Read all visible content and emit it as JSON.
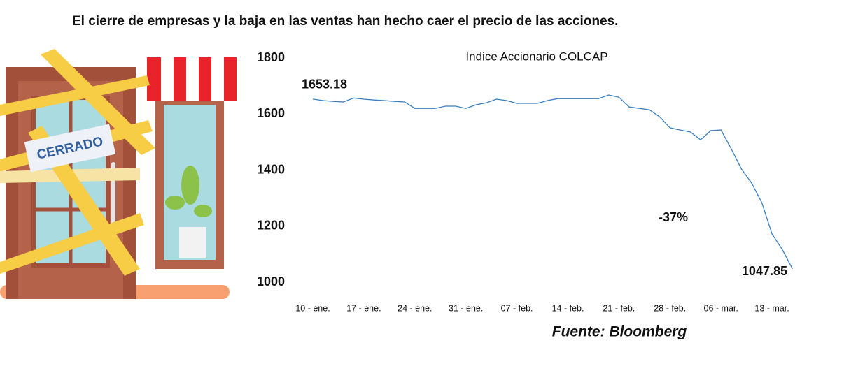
{
  "headline": "El cierre de empresas y la baja en las  ventas han hecho caer el precio de las acciones.",
  "illustration": {
    "sign": "CERRADO"
  },
  "source": "Fuente: Bloomberg",
  "chart_data": {
    "type": "line",
    "title": "Indice Accionario COLCAP",
    "color": "#3a7fc0",
    "categories": [
      "10 - ene.",
      null,
      null,
      null,
      null,
      "17 - ene.",
      null,
      null,
      null,
      null,
      "24 - ene.",
      null,
      null,
      null,
      null,
      "31 - ene.",
      null,
      null,
      null,
      null,
      "07 - feb.",
      null,
      null,
      null,
      null,
      "14 - feb.",
      null,
      null,
      null,
      null,
      "21 - feb.",
      null,
      null,
      null,
      null,
      "28 - feb.",
      null,
      null,
      null,
      null,
      "06 - mar.",
      null,
      null,
      null,
      null,
      "13 - mar.",
      null,
      null
    ],
    "values": [
      1653.18,
      1648,
      1645,
      1643,
      1657,
      1653,
      1650,
      1648,
      1645,
      1643,
      1620,
      1620,
      1620,
      1628,
      1628,
      1620,
      1633,
      1640,
      1653,
      1648,
      1638,
      1638,
      1638,
      1648,
      1655,
      1655,
      1655,
      1655,
      1655,
      1668,
      1660,
      1625,
      1620,
      1615,
      1590,
      1551,
      1543,
      1536,
      1508,
      1541,
      1543,
      1476,
      1404,
      1354,
      1284,
      1172,
      1117,
      1047.85
    ],
    "annotation": "-37%",
    "ylim": [
      1000,
      1800
    ],
    "yticks": [
      1000,
      1200,
      1400,
      1600,
      1800
    ],
    "grid": false
  }
}
